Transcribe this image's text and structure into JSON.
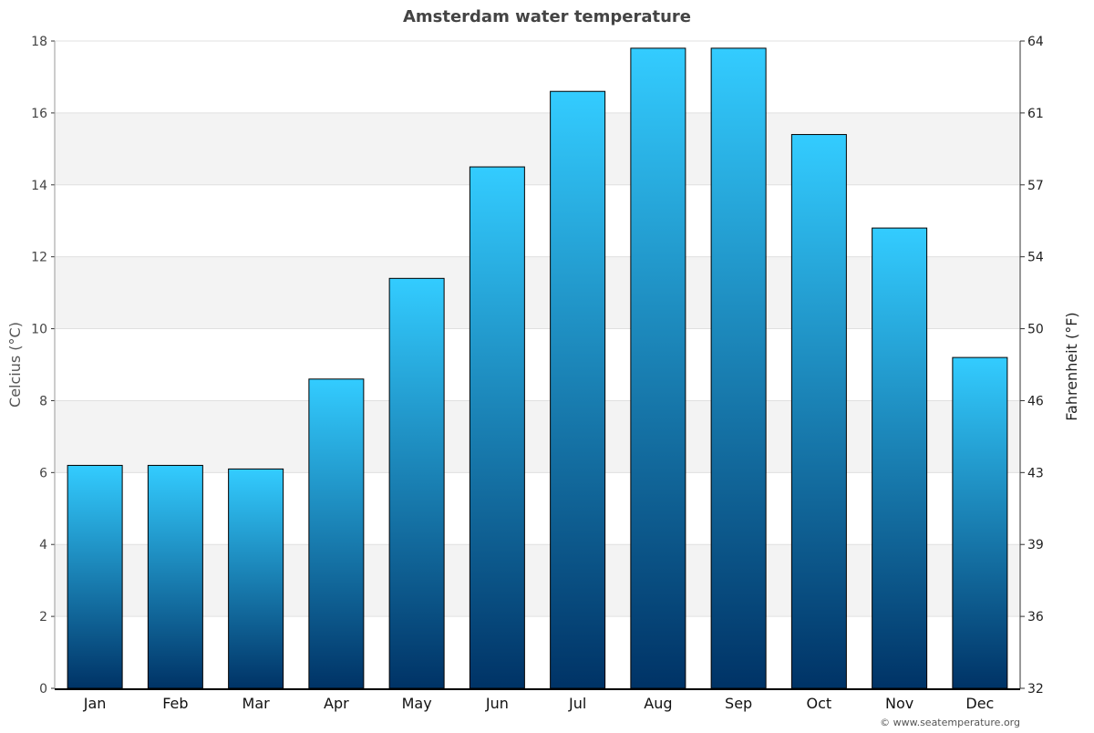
{
  "chart_data": {
    "type": "bar",
    "title": "Amsterdam water temperature",
    "ylabel": "Celcius (°C)",
    "y2label": "Fahrenheit (°F)",
    "categories": [
      "Jan",
      "Feb",
      "Mar",
      "Apr",
      "May",
      "Jun",
      "Jul",
      "Aug",
      "Sep",
      "Oct",
      "Nov",
      "Dec"
    ],
    "values": [
      6.2,
      6.2,
      6.1,
      8.6,
      11.4,
      14.5,
      16.6,
      17.8,
      17.8,
      15.4,
      12.8,
      9.2
    ],
    "ylim": [
      0,
      18
    ],
    "yticks": [
      0,
      2,
      4,
      6,
      8,
      10,
      12,
      14,
      16,
      18
    ],
    "y2ticks": [
      "32",
      "36",
      "39",
      "43",
      "46",
      "50",
      "54",
      "57",
      "61",
      "64"
    ],
    "grid": true,
    "colors": {
      "bar_top": "#33ccff",
      "bar_bottom": "#003366",
      "band": "#f3f3f3"
    }
  },
  "credit": "© www.seatemperature.org"
}
